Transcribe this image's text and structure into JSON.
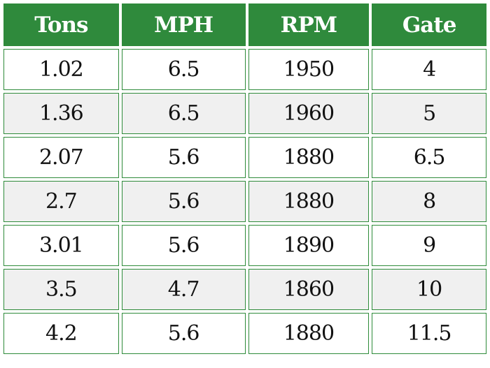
{
  "table": {
    "headers": [
      "Tons",
      "MPH",
      "RPM",
      "Gate"
    ],
    "rows": [
      [
        "1.02",
        "6.5",
        "1950",
        "4"
      ],
      [
        "1.36",
        "6.5",
        "1960",
        "5"
      ],
      [
        "2.07",
        "5.6",
        "1880",
        "6.5"
      ],
      [
        "2.7",
        "5.6",
        "1880",
        "8"
      ],
      [
        "3.01",
        "5.6",
        "1890",
        "9"
      ],
      [
        "3.5",
        "4.7",
        "1860",
        "10"
      ],
      [
        "4.2",
        "5.6",
        "1880",
        "11.5"
      ]
    ],
    "colors": {
      "header_bg": "#2f8a3c",
      "header_text": "#ffffff",
      "border": "#2e8b3a",
      "row_alt_bg": "#f0f0f0"
    }
  }
}
